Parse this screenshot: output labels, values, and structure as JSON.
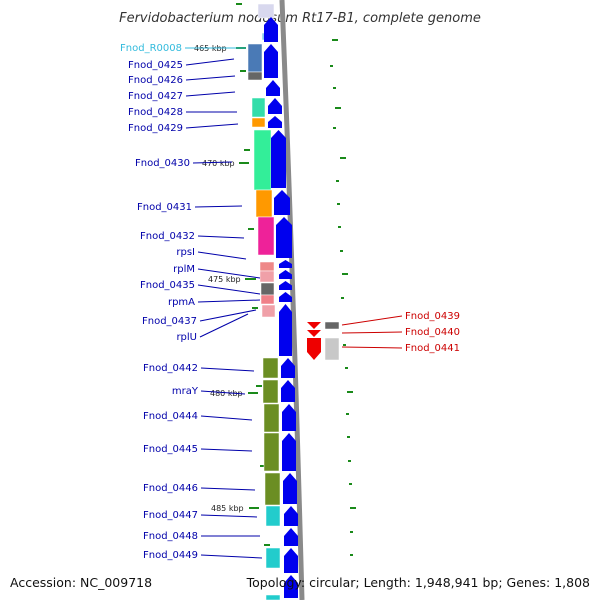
{
  "title": "Fervidobacterium nodosum Rt17-B1, complete genome",
  "footer": {
    "accession": "Accession: NC_009718",
    "info": "Topology: circular; Length: 1,948,941 bp; Genes: 1,808"
  },
  "colors": {
    "label_blue": "#0000aa",
    "label_cyan": "#33bbdd",
    "label_red": "#cc0000",
    "arrow_blue": "#0000ee",
    "arrow_red": "#ee0000",
    "backbone": "#8a8a8a",
    "tick": "#1a8a1a"
  },
  "kbp_markers": [
    "465 kbp",
    "470 kbp",
    "475 kbp",
    "480 kbp",
    "485 kbp"
  ],
  "left_genes": [
    "Fnod_R0008",
    "Fnod_0425",
    "Fnod_0426",
    "Fnod_0427",
    "Fnod_0428",
    "Fnod_0429",
    "Fnod_0430",
    "Fnod_0431",
    "Fnod_0432",
    "rpsI",
    "rplM",
    "Fnod_0435",
    "rpmA",
    "Fnod_0437",
    "rplU",
    "Fnod_0442",
    "mraY",
    "Fnod_0444",
    "Fnod_0445",
    "Fnod_0446",
    "Fnod_0447",
    "Fnod_0448",
    "Fnod_0449"
  ],
  "right_genes": [
    "Fnod_0439",
    "Fnod_0440",
    "Fnod_0441"
  ]
}
